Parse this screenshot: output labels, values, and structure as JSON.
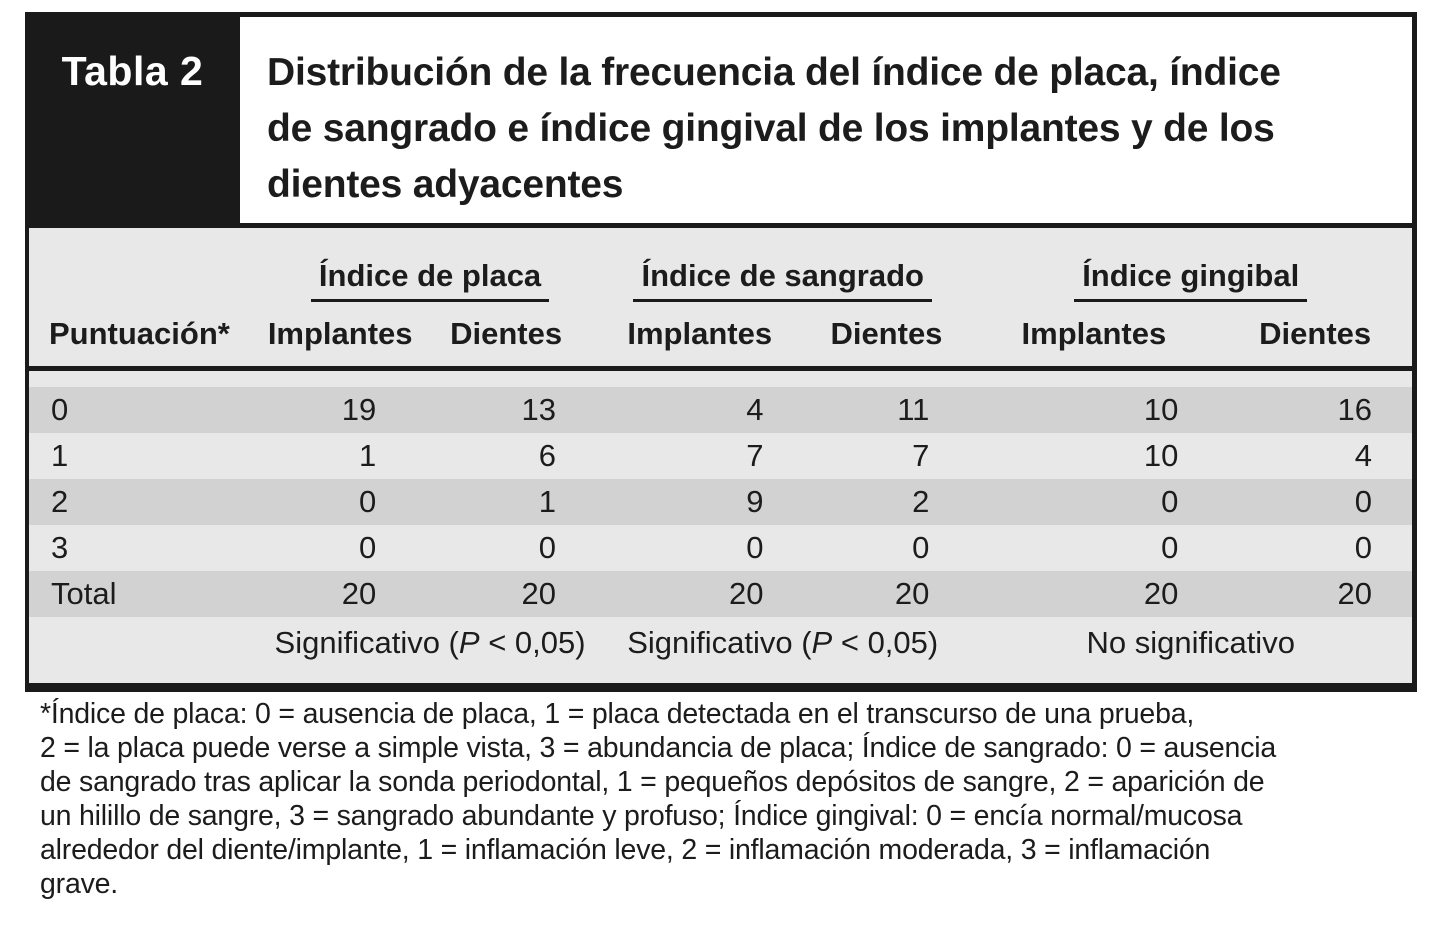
{
  "figure": {
    "label": "Tabla 2",
    "title": "Distribución de la frecuencia del índice de placa, índice de sangrado e índice gingival de los implantes y de los dientes adyacentes"
  },
  "table": {
    "group_headers": [
      "Índice de placa",
      "Índice de sangrado",
      "Índice gingibal"
    ],
    "score_header": "Puntuación*",
    "sub_headers": [
      "Implantes",
      "Dientes",
      "Implantes",
      "Dientes",
      "Implantes",
      "Dientes"
    ],
    "rows": [
      {
        "label": "0",
        "values": [
          "19",
          "13",
          "4",
          "11",
          "10",
          "16"
        ]
      },
      {
        "label": "1",
        "values": [
          "1",
          "6",
          "7",
          "7",
          "10",
          "4"
        ]
      },
      {
        "label": "2",
        "values": [
          "0",
          "1",
          "9",
          "2",
          "0",
          "0"
        ]
      },
      {
        "label": "3",
        "values": [
          "0",
          "0",
          "0",
          "0",
          "0",
          "0"
        ]
      },
      {
        "label": "Total",
        "values": [
          "20",
          "20",
          "20",
          "20",
          "20",
          "20"
        ]
      }
    ],
    "significance": [
      {
        "before": "Significativo (",
        "italic": "P",
        "after": " < 0,05)"
      },
      {
        "before": "Significativo (",
        "italic": "P",
        "after": " < 0,05)"
      },
      {
        "before": "No significativo",
        "italic": "",
        "after": ""
      }
    ]
  },
  "footnote_lines": [
    "*Índice de placa: 0 = ausencia de placa, 1 = placa detectada en el transcurso de una prueba,",
    "2 = la placa puede verse a simple vista, 3 = abundancia de placa;  Índice de sangrado: 0 = ausencia",
    "de sangrado tras aplicar la sonda periodontal, 1 = pequeños depósitos de sangre, 2 = aparición de",
    "un hilillo de sangre, 3 = sangrado abundante y profuso; Índice gingival: 0 = encía normal/mucosa",
    "alrededor del diente/implante, 1 = inflamación leve, 2 = inflamación moderada, 3 = inflamación",
    "grave."
  ],
  "colors": {
    "black": "#1a1a1a",
    "row_dark": "#d2d2d2",
    "row_light": "#e8e8e8",
    "text": "#1c1c1c"
  }
}
